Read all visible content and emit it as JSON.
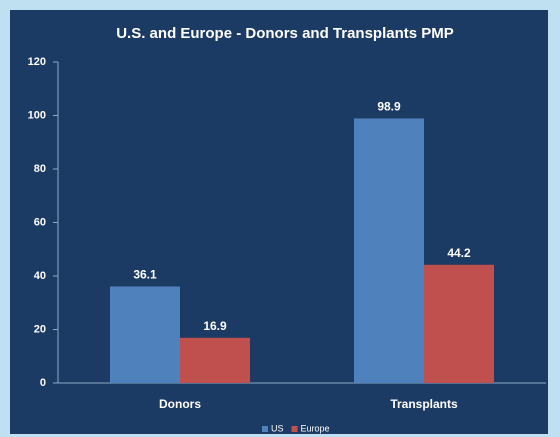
{
  "chart_data": {
    "type": "bar",
    "title": "U.S. and Europe - Donors and Transplants PMP",
    "categories": [
      "Donors",
      "Transplants"
    ],
    "series": [
      {
        "name": "US",
        "color": "#4f81bd",
        "values": [
          36.1,
          98.9
        ]
      },
      {
        "name": "Europe",
        "color": "#c0504d",
        "values": [
          16.9,
          44.2
        ]
      }
    ],
    "ylim": [
      0,
      120
    ],
    "yticks": [
      0,
      20,
      40,
      60,
      80,
      100,
      120
    ],
    "grid": false,
    "legend": "bottom"
  }
}
